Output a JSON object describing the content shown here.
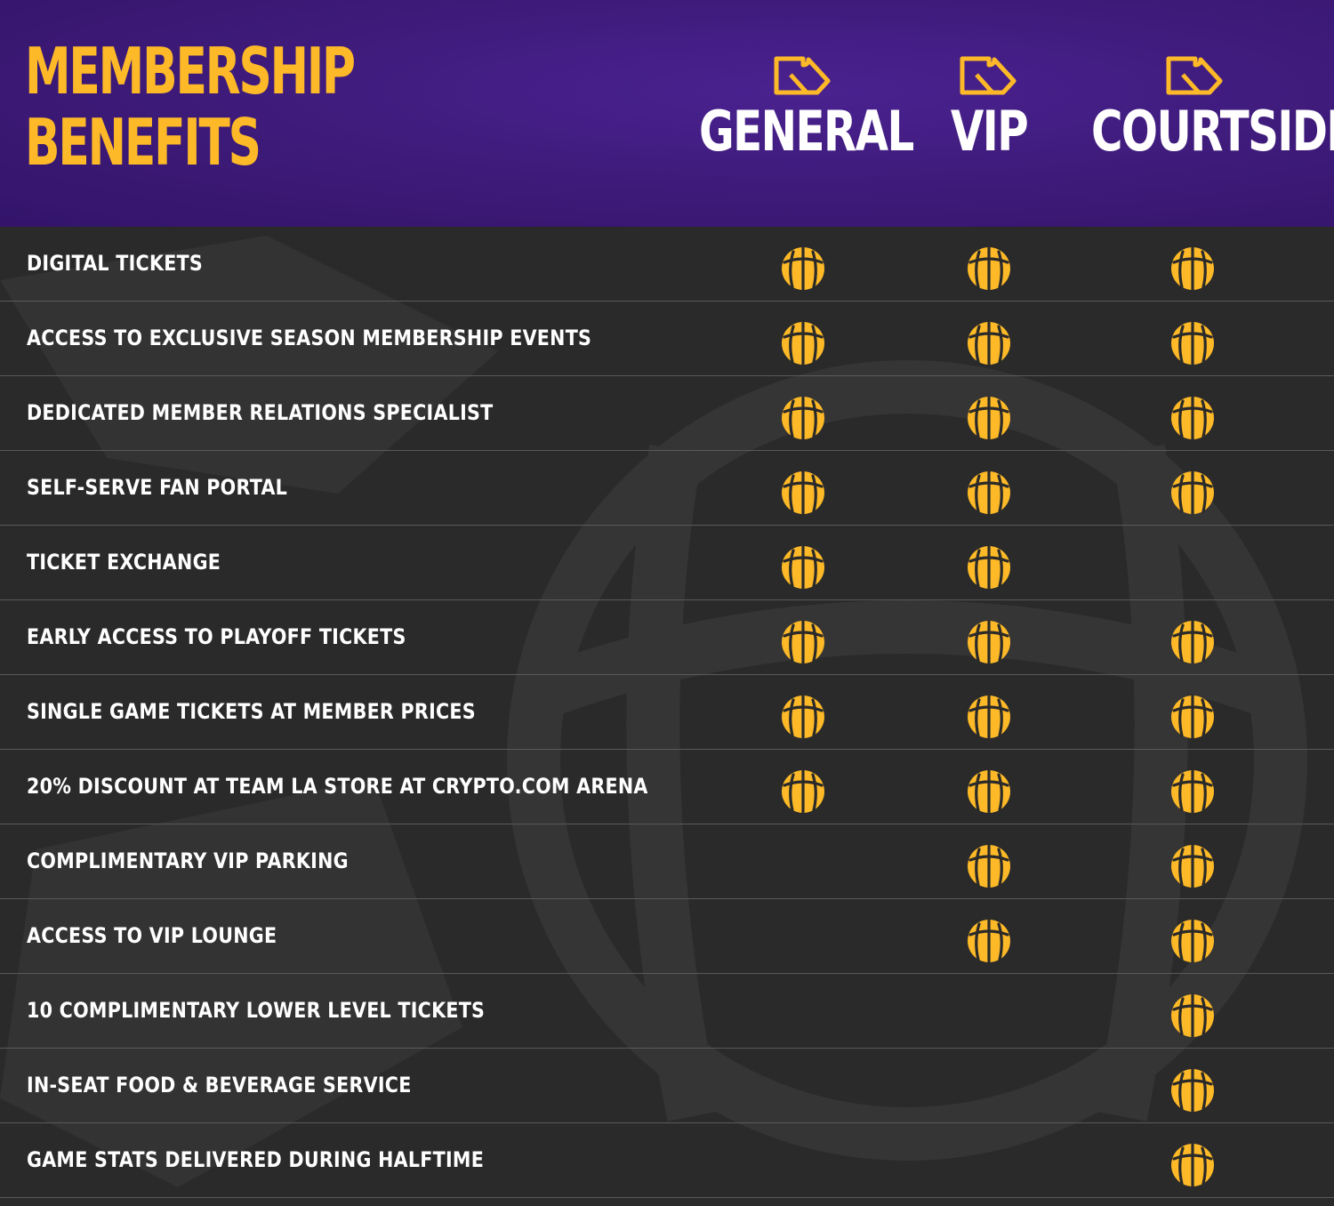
{
  "header": {
    "title_line1": "MEMBERSHIP",
    "title_line2": "BENEFITS",
    "title_color": "#fdb927",
    "background_color": "#3d1a78"
  },
  "tiers": [
    {
      "name": "GENERAL",
      "icon": "ticket-icon"
    },
    {
      "name": "VIP",
      "icon": "ticket-icon"
    },
    {
      "name": "COURTSIDE",
      "icon": "ticket-icon"
    }
  ],
  "benefit_icon": "basketball-icon",
  "benefit_icon_color": "#fdb927",
  "benefits": [
    {
      "label": "DIGITAL TICKETS",
      "general": true,
      "vip": true,
      "courtside": true
    },
    {
      "label": "ACCESS TO EXCLUSIVE SEASON MEMBERSHIP EVENTS",
      "general": true,
      "vip": true,
      "courtside": true
    },
    {
      "label": "DEDICATED MEMBER RELATIONS SPECIALIST",
      "general": true,
      "vip": true,
      "courtside": true
    },
    {
      "label": "SELF-SERVE FAN PORTAL",
      "general": true,
      "vip": true,
      "courtside": true
    },
    {
      "label": "TICKET EXCHANGE",
      "general": true,
      "vip": true,
      "courtside": false
    },
    {
      "label": "EARLY ACCESS TO PLAYOFF TICKETS",
      "general": true,
      "vip": true,
      "courtside": true
    },
    {
      "label": "SINGLE GAME TICKETS AT MEMBER PRICES",
      "general": true,
      "vip": true,
      "courtside": true
    },
    {
      "label": "20% DISCOUNT AT TEAM LA STORE AT CRYPTO.COM ARENA",
      "general": true,
      "vip": true,
      "courtside": true
    },
    {
      "label": "COMPLIMENTARY VIP PARKING",
      "general": false,
      "vip": true,
      "courtside": true
    },
    {
      "label": "ACCESS TO VIP LOUNGE",
      "general": false,
      "vip": true,
      "courtside": true
    },
    {
      "label": "10 COMPLIMENTARY LOWER LEVEL TICKETS",
      "general": false,
      "vip": false,
      "courtside": true
    },
    {
      "label": "IN-SEAT FOOD & BEVERAGE SERVICE",
      "general": false,
      "vip": false,
      "courtside": true
    },
    {
      "label": "GAME STATS DELIVERED DURING HALFTIME",
      "general": false,
      "vip": false,
      "courtside": true
    }
  ]
}
